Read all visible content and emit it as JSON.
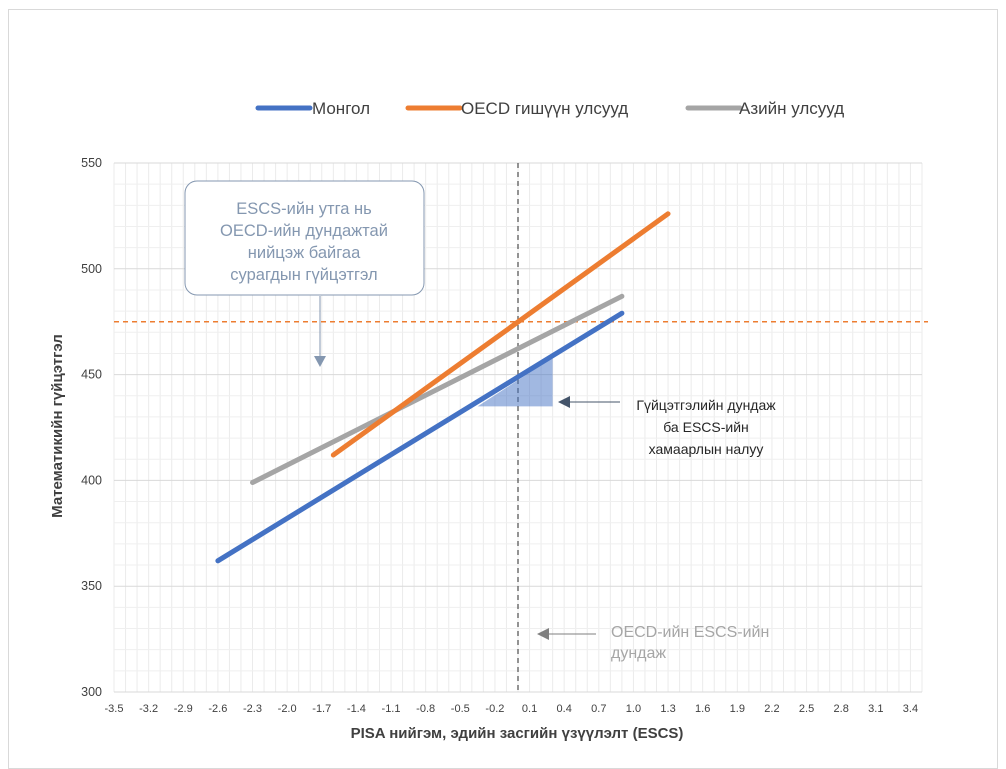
{
  "chart_data": {
    "type": "line",
    "xlabel": "PISA нийгэм, эдийн засгийн үзүүлэлт (ESCS)",
    "ylabel": "Математикийн гүйцэтгэл",
    "xlim": [
      -3.5,
      3.5
    ],
    "ylim": [
      300,
      550
    ],
    "x_ticks": [
      "-3.5",
      "-3.2",
      "-2.9",
      "-2.6",
      "-2.3",
      "-2.0",
      "-1.7",
      "-1.4",
      "-1.1",
      "-0.8",
      "-0.5",
      "-0.2",
      "0.1",
      "0.4",
      "0.7",
      "1.0",
      "1.3",
      "1.6",
      "1.9",
      "2.2",
      "2.5",
      "2.8",
      "3.1",
      "3.4"
    ],
    "y_ticks": [
      "300",
      "350",
      "400",
      "450",
      "500",
      "550"
    ],
    "grid": true,
    "legend_position": "top",
    "series": [
      {
        "name": "Монгол",
        "color": "#4472c4",
        "x": [
          -2.6,
          0.9
        ],
        "y": [
          362,
          479
        ]
      },
      {
        "name": "OECD гишүүн улсууд",
        "color": "#ed7d31",
        "x": [
          -1.6,
          1.3
        ],
        "y": [
          412,
          526
        ]
      },
      {
        "name": "Азийн улсууд",
        "color": "#a5a5a5",
        "x": [
          -2.3,
          0.9
        ],
        "y": [
          399,
          487
        ]
      }
    ],
    "reference_lines": {
      "horizontal_y": 475,
      "horizontal_color": "#ed7d31",
      "vertical_x": 0.0,
      "vertical_color": "#595959"
    },
    "slope_triangle": {
      "x": [
        -0.35,
        0.3
      ],
      "y": [
        435,
        458
      ],
      "color": "#4472c4"
    },
    "annotations": [
      {
        "lines": [
          "ESCS-ийн утга нь",
          "OECD-ийн дундажтай",
          "нийцэж байгаа",
          "сурагдын гүйцэтгэл"
        ],
        "color": "#8497b0"
      },
      {
        "lines": [
          "Гүйцэтгэлийн дундаж",
          "ба ESCS-ийн",
          "хамаарлын налуу"
        ],
        "color": "#262626"
      },
      {
        "lines": [
          "OECD-ийн ESCS-ийн",
          "дундаж"
        ],
        "color": "#a6a6a6"
      }
    ]
  }
}
